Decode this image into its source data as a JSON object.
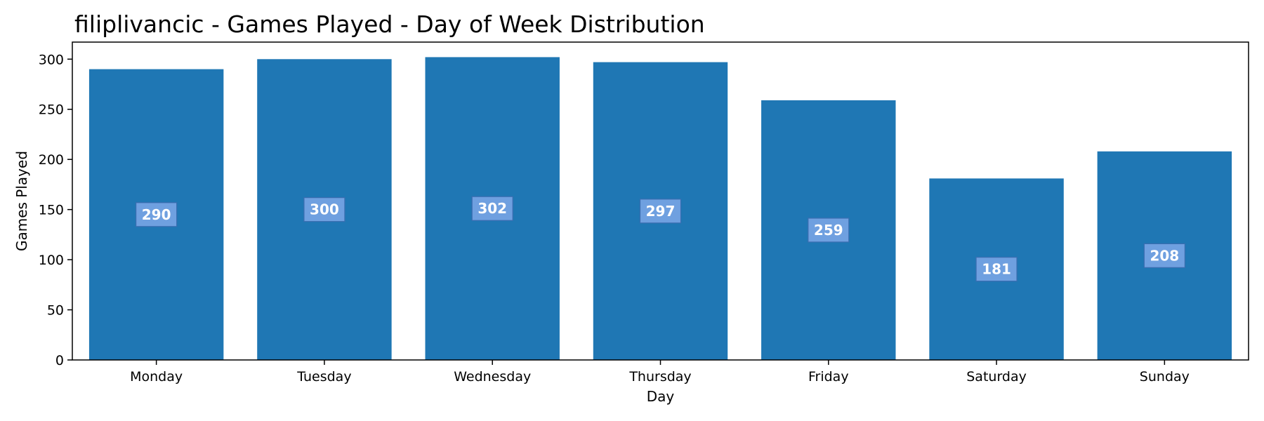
{
  "chart_data": {
    "type": "bar",
    "title": "filiplivancic - Games Played - Day of Week Distribution",
    "xlabel": "Day",
    "ylabel": "Games Played",
    "categories": [
      "Monday",
      "Tuesday",
      "Wednesday",
      "Thursday",
      "Friday",
      "Saturday",
      "Sunday"
    ],
    "values": [
      290,
      300,
      302,
      297,
      259,
      181,
      208
    ],
    "data_labels": [
      "290",
      "300",
      "302",
      "297",
      "259",
      "181",
      "208"
    ],
    "ylim": [
      0,
      317
    ],
    "yticks": [
      0,
      50,
      100,
      150,
      200,
      250,
      300
    ],
    "grid": false,
    "bar_color": "#1f77b4",
    "label_box_color": "#6fa0e0",
    "label_box_border": "#3a6db0"
  }
}
